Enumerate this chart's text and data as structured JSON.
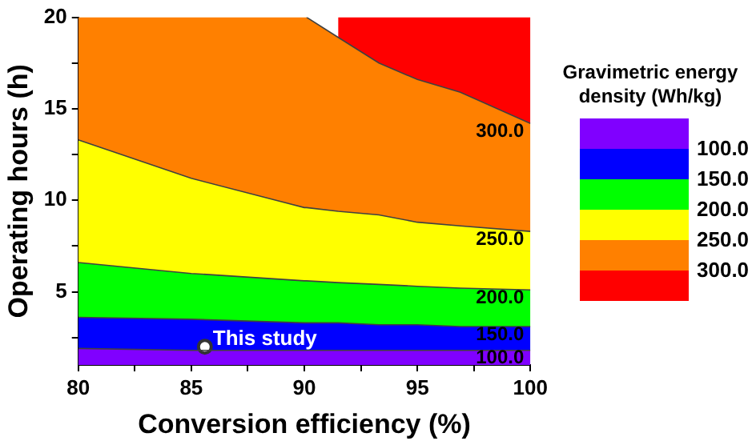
{
  "chart_data": {
    "type": "area",
    "stacked": true,
    "xlabel": "Conversion efficiency (%)",
    "ylabel": "Operating hours (h)",
    "legend_title": "Gravimetric energy density (Wh/kg)",
    "legend": "right",
    "grid": false,
    "marker": "none",
    "xlim": [
      80,
      100
    ],
    "xticks": [
      80,
      {
        "value": 82.5,
        "label": null
      },
      85,
      {
        "value": 87.5,
        "label": null
      },
      90,
      {
        "value": 92.5,
        "label": null
      },
      95,
      {
        "value": 97.5,
        "label": null
      },
      100
    ],
    "ylim": [
      1,
      20
    ],
    "yticks": [
      {
        "value": 2.5,
        "label": null
      },
      5,
      {
        "value": 7.5,
        "label": null
      },
      10,
      {
        "value": 12.5,
        "label": null
      },
      15,
      {
        "value": 17.5,
        "label": null
      },
      20
    ],
    "x": [
      80,
      85,
      90,
      90.1,
      91.5,
      93.3,
      95,
      96.9,
      100
    ],
    "series": [
      {
        "name": "100.0",
        "color": "#8000ff",
        "values": [
          1.9,
          1.8,
          1.8,
          1.8,
          1.8,
          1.8,
          1.8,
          1.8,
          1.8
        ]
      },
      {
        "name": "150.0",
        "color": "#0000ff",
        "values": [
          1.7,
          1.7,
          1.5,
          1.5,
          1.5,
          1.4,
          1.4,
          1.3,
          1.3
        ]
      },
      {
        "name": "200.0",
        "color": "#00ff00",
        "values": [
          3.0,
          2.5,
          2.3,
          2.3,
          2.2,
          2.2,
          2.1,
          2.1,
          2.0
        ]
      },
      {
        "name": "250.0",
        "color": "#ffff00",
        "values": [
          6.7,
          5.2,
          4.0,
          4.0,
          3.9,
          3.8,
          3.5,
          3.4,
          3.2
        ]
      },
      {
        "name": "300.0",
        "color": "#ff8000",
        "values": [
          6.7,
          8.8,
          10.4,
          10.4,
          9.5,
          8.3,
          7.8,
          7.3,
          5.9
        ]
      },
      {
        "color": "#ff0000",
        "values": [
          null,
          null,
          null,
          null,
          1.1,
          2.5,
          3.4,
          4.1,
          5.8
        ]
      },
      {
        "type": "scatter",
        "color": "#ffffff",
        "marker": "circle",
        "x": [
          85.6
        ],
        "values": [
          2.0
        ]
      }
    ],
    "annotations": [
      {
        "text": "This study",
        "x": 85.6,
        "y": 2.0
      }
    ]
  }
}
